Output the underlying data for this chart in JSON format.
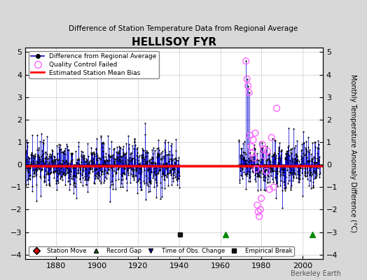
{
  "title": "HELLISOY FYR",
  "subtitle": "Difference of Station Temperature Data from Regional Average",
  "ylabel": "Monthly Temperature Anomaly Difference (°C)",
  "xlim": [
    1865,
    2010
  ],
  "ylim": [
    -4.2,
    5.2
  ],
  "yticks": [
    -4,
    -3,
    -2,
    -1,
    0,
    1,
    2,
    3,
    4,
    5
  ],
  "xticks": [
    1880,
    1900,
    1920,
    1940,
    1960,
    1980,
    2000
  ],
  "bias_value": -0.05,
  "bias_color": "#ff0000",
  "bias_linewidth": 2.5,
  "line_color": "#0000cc",
  "dot_color": "#000000",
  "dot_size": 2.5,
  "shading_color": "#aaaaff",
  "shading_alpha": 0.55,
  "qc_color": "#ff66ff",
  "station_move_color": "#cc0000",
  "record_gap_color": "#008800",
  "tobs_color": "#0000cc",
  "emp_break_color": "#111111",
  "plot_bg": "#ffffff",
  "fig_bg": "#d8d8d8",
  "random_seed": 17,
  "segment1_start": 1865.0,
  "segment1_end": 1940.0,
  "segment2_start": 1969.0,
  "segment2_end": 2008.5,
  "noise_std": 0.7,
  "spike_years": [
    1972.5,
    1973.0,
    1973.5,
    1974.0
  ],
  "spike_values": [
    4.6,
    3.8,
    3.5,
    3.2
  ],
  "qc_years": [
    1972.5,
    1973.0,
    1973.5,
    1974.0,
    1974.5,
    1975.0,
    1975.5,
    1976.0,
    1976.5,
    1977.0,
    1977.5,
    1978.0,
    1978.5,
    1979.0,
    1979.5,
    1980.0,
    1980.5,
    1981.0,
    1981.5,
    1982.5,
    1983.0,
    1984.0,
    1985.0,
    1986.0,
    1987.5
  ],
  "qc_values": [
    4.6,
    3.8,
    3.5,
    3.2,
    1.3,
    0.8,
    0.5,
    1.1,
    0.3,
    1.4,
    -0.2,
    -1.8,
    -2.1,
    -2.3,
    -2.0,
    -1.5,
    0.9,
    0.7,
    0.4,
    -0.3,
    0.6,
    -1.1,
    1.2,
    -1.0,
    2.5
  ],
  "record_gaps": [
    1962.5,
    2005.0
  ],
  "emp_breaks": [
    1940.2
  ],
  "ann_y": -3.1,
  "legend1_items": [
    "Difference from Regional Average",
    "Quality Control Failed",
    "Estimated Station Mean Bias"
  ],
  "legend2_items": [
    "Station Move",
    "Record Gap",
    "Time of Obs. Change",
    "Empirical Break"
  ],
  "berkeley_earth_text": "Berkeley Earth"
}
